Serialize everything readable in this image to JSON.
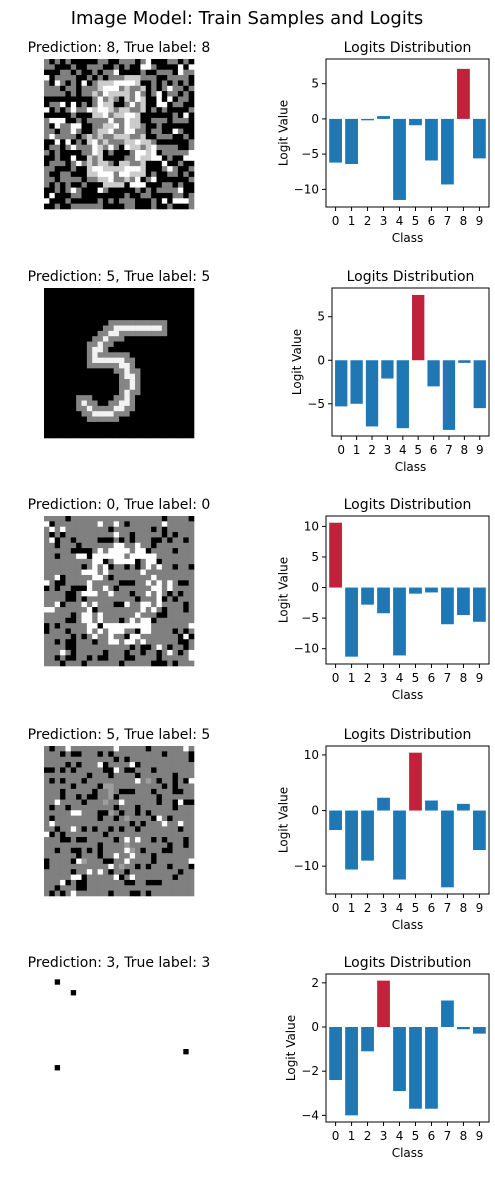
{
  "figure": {
    "title": "Image Model: Train Samples and Logits"
  },
  "colors": {
    "bar": "#1f77b4",
    "highlight": "#c0223b",
    "axis": "#000000",
    "background": "#ffffff"
  },
  "samples": [
    {
      "title": "Prediction: 8, True label: 8",
      "pattern": "noisy-grey-black-background-digit-8"
    },
    {
      "title": "Prediction: 5, True label: 5",
      "pattern": "clean-black-background-digit-5"
    },
    {
      "title": "Prediction: 0, True label: 0",
      "pattern": "grey-background-noisy-digit-0"
    },
    {
      "title": "Prediction: 5, True label: 5",
      "pattern": "grey-background-noisy-faint"
    },
    {
      "title": "Prediction: 3, True label: 3",
      "pattern": "white-background-sparse-black-dots"
    }
  ],
  "chart_data": [
    {
      "type": "bar",
      "title": "Logits Distribution",
      "xlabel": "Class",
      "ylabel": "Logit Value",
      "categories": [
        "0",
        "1",
        "2",
        "3",
        "4",
        "5",
        "6",
        "7",
        "8",
        "9"
      ],
      "values": [
        -6.2,
        -6.4,
        -0.2,
        0.4,
        -11.5,
        -0.9,
        -5.9,
        -9.3,
        7.1,
        -5.6
      ],
      "highlight_index": 8,
      "ylim": [
        -12.5,
        8.5
      ],
      "yticks": [
        5,
        0,
        -5,
        -10
      ],
      "ytick_labels": [
        "5",
        "0",
        "−5",
        "−10"
      ]
    },
    {
      "type": "bar",
      "title": "Logits Distribution",
      "xlabel": "Class",
      "ylabel": "Logit Value",
      "categories": [
        "0",
        "1",
        "2",
        "3",
        "4",
        "5",
        "6",
        "7",
        "8",
        "9"
      ],
      "values": [
        -5.3,
        -5.0,
        -7.6,
        -2.1,
        -7.8,
        7.5,
        -3.0,
        -8.0,
        -0.3,
        -5.5
      ],
      "highlight_index": 5,
      "ylim": [
        -8.7,
        8.3
      ],
      "yticks": [
        5,
        0,
        -5
      ],
      "ytick_labels": [
        "5",
        "0",
        "−5"
      ]
    },
    {
      "type": "bar",
      "title": "Logits Distribution",
      "xlabel": "Class",
      "ylabel": "Logit Value",
      "categories": [
        "0",
        "1",
        "2",
        "3",
        "4",
        "5",
        "6",
        "7",
        "8",
        "9"
      ],
      "values": [
        10.6,
        -11.3,
        -2.8,
        -4.2,
        -11.1,
        -1.0,
        -0.8,
        -6.0,
        -4.5,
        -5.6
      ],
      "highlight_index": 0,
      "ylim": [
        -12.5,
        11.7
      ],
      "yticks": [
        10,
        5,
        0,
        -5,
        -10
      ],
      "ytick_labels": [
        "10",
        "5",
        "0",
        "−5",
        "−10"
      ]
    },
    {
      "type": "bar",
      "title": "Logits Distribution",
      "xlabel": "Class",
      "ylabel": "Logit Value",
      "categories": [
        "0",
        "1",
        "2",
        "3",
        "4",
        "5",
        "6",
        "7",
        "8",
        "9"
      ],
      "values": [
        -3.5,
        -10.6,
        -9.0,
        2.3,
        -12.4,
        10.4,
        1.8,
        -13.8,
        1.2,
        -7.1
      ],
      "highlight_index": 5,
      "ylim": [
        -15.0,
        11.6
      ],
      "yticks": [
        10,
        0,
        -10
      ],
      "ytick_labels": [
        "10",
        "0",
        "−10"
      ]
    },
    {
      "type": "bar",
      "title": "Logits Distribution",
      "xlabel": "Class",
      "ylabel": "Logit Value",
      "categories": [
        "0",
        "1",
        "2",
        "3",
        "4",
        "5",
        "6",
        "7",
        "8",
        "9"
      ],
      "values": [
        -2.4,
        -4.0,
        -1.1,
        2.1,
        -2.9,
        -3.7,
        -3.7,
        1.2,
        -0.1,
        -0.3
      ],
      "highlight_index": 3,
      "ylim": [
        -4.3,
        2.4
      ],
      "yticks": [
        2,
        0,
        -2,
        -4
      ],
      "ytick_labels": [
        "2",
        "0",
        "−2",
        "−4"
      ]
    }
  ]
}
